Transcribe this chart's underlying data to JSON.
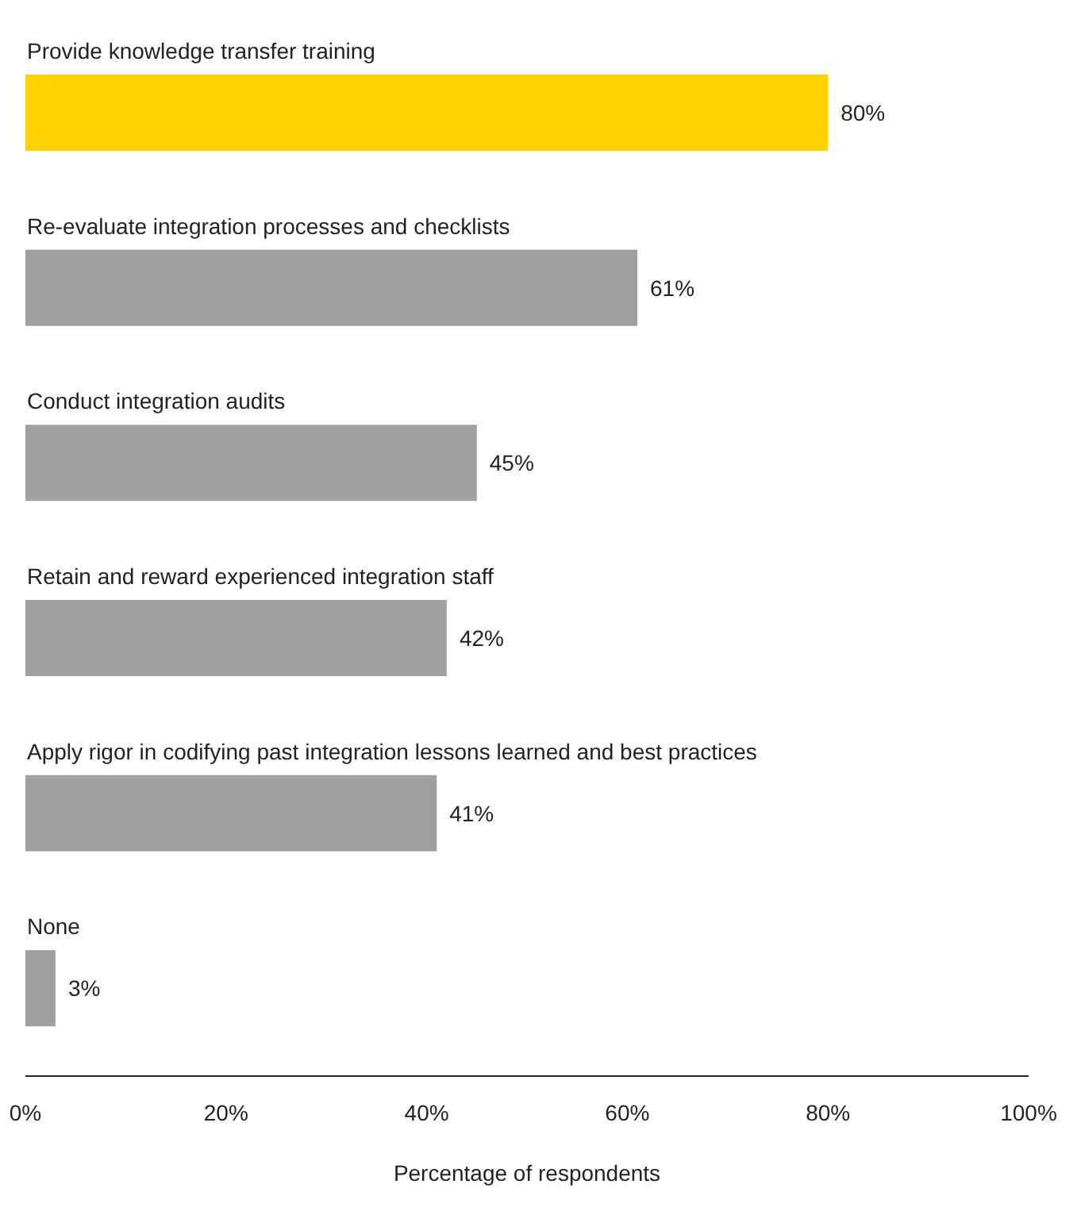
{
  "chart_data": {
    "type": "bar",
    "orientation": "horizontal",
    "xlabel": "Percentage of respondents",
    "categories": [
      "Provide knowledge transfer training",
      "Re-evaluate integration processes and checklists",
      "Conduct integration audits",
      "Retain and reward experienced integration staff",
      "Apply rigor in codifying past integration lessons learned and best practices",
      "None"
    ],
    "values": [
      80,
      61,
      45,
      42,
      41,
      3
    ],
    "value_labels": [
      "80%",
      "61%",
      "45%",
      "42%",
      "41%",
      "3%"
    ],
    "colors": [
      "#ffd200",
      "#a0a0a0",
      "#a0a0a0",
      "#a0a0a0",
      "#a0a0a0",
      "#a0a0a0"
    ],
    "xlim": [
      0,
      100
    ],
    "xticks": [
      {
        "value": 0,
        "label": "0%"
      },
      {
        "value": 20,
        "label": "20%"
      },
      {
        "value": 40,
        "label": "40%"
      },
      {
        "value": 60,
        "label": "60%"
      },
      {
        "value": 80,
        "label": "80%"
      },
      {
        "value": 100,
        "label": "100%"
      }
    ],
    "grid": false,
    "legend": false
  }
}
